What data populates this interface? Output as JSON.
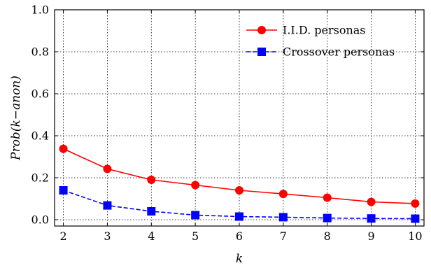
{
  "chart_data": {
    "type": "line",
    "xlabel": "k",
    "ylabel": "Prob(k−anon)",
    "x": [
      2,
      3,
      4,
      5,
      6,
      7,
      8,
      9,
      10
    ],
    "xlim": [
      1.8,
      10.2
    ],
    "ylim": [
      -0.03,
      1.0
    ],
    "xticks": [
      "2",
      "3",
      "4",
      "5",
      "6",
      "7",
      "8",
      "9",
      "10"
    ],
    "yticks": [
      "0.0",
      "0.2",
      "0.4",
      "0.6",
      "0.8",
      "1.0"
    ],
    "grid": true,
    "legend_position": "top-right",
    "series": [
      {
        "name": "I.I.D. personas",
        "color": "#ff0000",
        "marker": "circle",
        "line_style": "solid",
        "values": [
          0.338,
          0.242,
          0.19,
          0.165,
          0.14,
          0.123,
          0.105,
          0.085,
          0.077
        ]
      },
      {
        "name": "Crossover personas",
        "color": "#0000ff",
        "marker": "square",
        "line_style": "dashed",
        "values": [
          0.14,
          0.068,
          0.04,
          0.022,
          0.015,
          0.012,
          0.008,
          0.006,
          0.005
        ]
      }
    ]
  }
}
